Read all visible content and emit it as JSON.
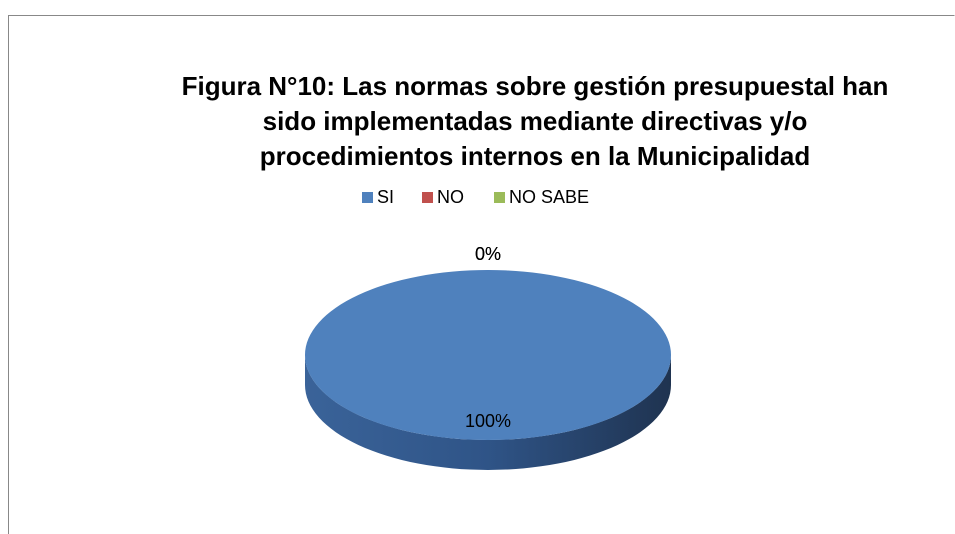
{
  "chart_data": {
    "type": "pie",
    "title": [
      "Figura N°10: Las normas sobre gestión presupuestal han",
      "sido implementadas mediante directivas y/o",
      "procedimientos internos en la Municipalidad"
    ],
    "categories": [
      "SI",
      "NO",
      "NO SABE"
    ],
    "values": [
      100,
      0,
      0
    ],
    "value_labels": [
      "100%",
      "0%",
      "0%"
    ],
    "colors": [
      "#4f81bd",
      "#c0504d",
      "#9bbb59"
    ],
    "legend": "top"
  }
}
